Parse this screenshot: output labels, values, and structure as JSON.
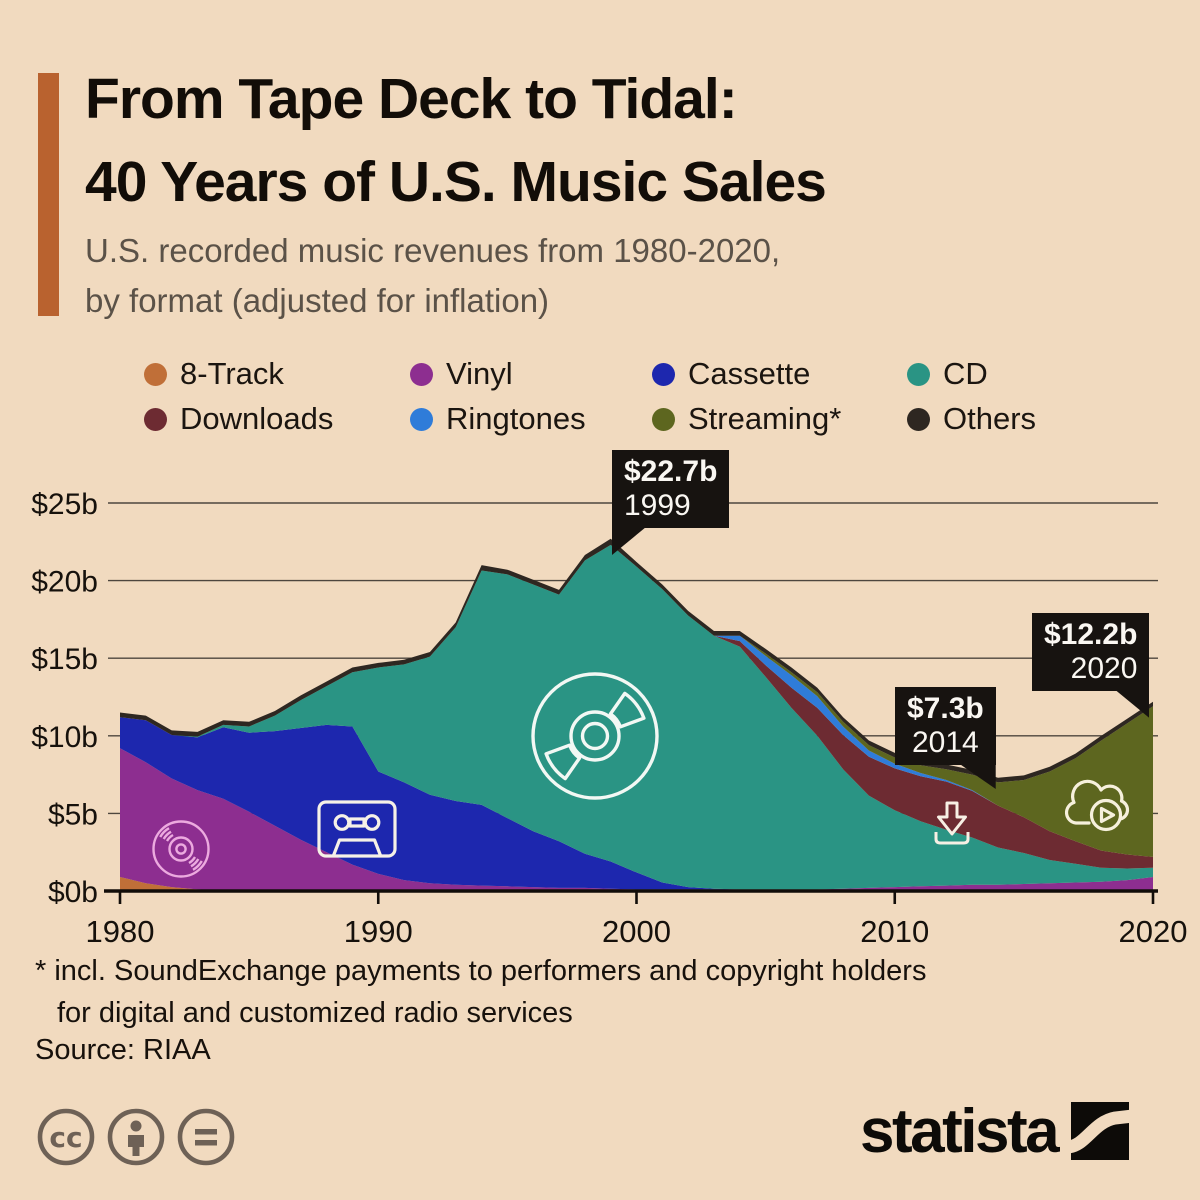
{
  "page": {
    "background": "#F1DABF"
  },
  "header": {
    "accent_color": "#B9622F",
    "title_line1": "From Tape Deck to Tidal:",
    "title_line2": "40 Years of U.S. Music Sales",
    "subtitle_line1": "U.S. recorded music revenues from 1980-2020,",
    "subtitle_line2": "by format (adjusted for inflation)"
  },
  "legend": {
    "items": [
      {
        "label": "8-Track",
        "color": "#C06F38"
      },
      {
        "label": "Vinyl",
        "color": "#8D2E90"
      },
      {
        "label": "Cassette",
        "color": "#1D27AE"
      },
      {
        "label": "CD",
        "color": "#2A9484"
      },
      {
        "label": "Downloads",
        "color": "#6D2B32"
      },
      {
        "label": "Ringtones",
        "color": "#2F7CD9"
      },
      {
        "label": "Streaming*",
        "color": "#5D661F"
      },
      {
        "label": "Others",
        "color": "#2E2721"
      }
    ]
  },
  "chart_data": {
    "type": "area",
    "stacked": true,
    "title": "U.S. recorded music revenues by format, adjusted for inflation, $ billions",
    "x": [
      1980,
      1981,
      1982,
      1983,
      1984,
      1985,
      1986,
      1987,
      1988,
      1989,
      1990,
      1991,
      1992,
      1993,
      1994,
      1995,
      1996,
      1997,
      1998,
      1999,
      2000,
      2001,
      2002,
      2003,
      2004,
      2005,
      2006,
      2007,
      2008,
      2009,
      2010,
      2011,
      2012,
      2013,
      2014,
      2015,
      2016,
      2017,
      2018,
      2019,
      2020
    ],
    "x_tick_labels": [
      "1980",
      "1990",
      "2000",
      "2010",
      "2020"
    ],
    "y_ticks": [
      {
        "label": "$0b",
        "value": 0
      },
      {
        "label": "$5b",
        "value": 5
      },
      {
        "label": "$10b",
        "value": 10
      },
      {
        "label": "$15b",
        "value": 15
      },
      {
        "label": "$20b",
        "value": 20
      },
      {
        "label": "$25b",
        "value": 25
      }
    ],
    "ylim": [
      0,
      25
    ],
    "grid": true,
    "legend_position": "top",
    "series": [
      {
        "name": "8-Track",
        "color": "#C06F38",
        "values": [
          0.9,
          0.5,
          0.25,
          0.1,
          0.05,
          0,
          0,
          0,
          0,
          0,
          0,
          0,
          0,
          0,
          0,
          0,
          0,
          0,
          0,
          0,
          0,
          0,
          0,
          0,
          0,
          0,
          0,
          0,
          0,
          0,
          0,
          0,
          0,
          0,
          0,
          0,
          0,
          0,
          0,
          0,
          0
        ]
      },
      {
        "name": "Vinyl",
        "color": "#8D2E90",
        "values": [
          8.3,
          7.8,
          7.0,
          6.4,
          5.9,
          5.1,
          4.2,
          3.3,
          2.5,
          1.7,
          1.1,
          0.7,
          0.5,
          0.4,
          0.35,
          0.3,
          0.25,
          0.2,
          0.2,
          0.15,
          0.1,
          0.1,
          0.1,
          0.1,
          0.1,
          0.1,
          0.1,
          0.1,
          0.15,
          0.2,
          0.25,
          0.3,
          0.35,
          0.4,
          0.4,
          0.45,
          0.5,
          0.55,
          0.6,
          0.7,
          0.9
        ]
      },
      {
        "name": "Cassette",
        "color": "#1D27AE",
        "values": [
          2.0,
          2.7,
          2.8,
          3.4,
          4.6,
          5.1,
          6.1,
          7.2,
          8.2,
          8.9,
          6.6,
          6.3,
          5.7,
          5.4,
          5.2,
          4.4,
          3.6,
          3.0,
          2.2,
          1.75,
          1.1,
          0.45,
          0.15,
          0.05,
          0,
          0,
          0,
          0,
          0,
          0,
          0,
          0,
          0,
          0,
          0,
          0,
          0,
          0,
          0,
          0,
          0
        ]
      },
      {
        "name": "CD",
        "color": "#2A9484",
        "values": [
          0,
          0,
          0,
          0.05,
          0.15,
          0.4,
          1.0,
          1.8,
          2.5,
          3.5,
          6.7,
          7.6,
          8.9,
          11.2,
          15.1,
          15.7,
          15.9,
          15.9,
          18.9,
          20.4,
          19.7,
          18.9,
          17.5,
          16.3,
          15.65,
          13.7,
          11.7,
          9.9,
          7.7,
          5.95,
          4.95,
          4.2,
          3.6,
          3.05,
          2.4,
          2.0,
          1.5,
          1.2,
          0.9,
          0.75,
          0.6
        ]
      },
      {
        "name": "Downloads",
        "color": "#6D2B32",
        "values": [
          0,
          0,
          0,
          0,
          0,
          0,
          0,
          0,
          0,
          0,
          0,
          0,
          0,
          0,
          0,
          0,
          0,
          0,
          0,
          0,
          0,
          0,
          0,
          0,
          0.35,
          0.75,
          1.3,
          1.8,
          2.2,
          2.5,
          2.7,
          2.9,
          3.1,
          3.0,
          2.7,
          2.3,
          1.85,
          1.45,
          1.1,
          0.9,
          0.7
        ]
      },
      {
        "name": "Ringtones",
        "color": "#2F7CD9",
        "values": [
          0,
          0,
          0,
          0,
          0,
          0,
          0,
          0,
          0,
          0,
          0,
          0,
          0,
          0,
          0,
          0,
          0,
          0,
          0,
          0,
          0,
          0,
          0,
          0,
          0.35,
          0.6,
          0.8,
          0.75,
          0.55,
          0.4,
          0.3,
          0.2,
          0.1,
          0.05,
          0,
          0,
          0,
          0,
          0,
          0,
          0
        ]
      },
      {
        "name": "Streaming*",
        "color": "#5D661F",
        "values": [
          0,
          0,
          0,
          0,
          0,
          0,
          0,
          0,
          0,
          0,
          0,
          0,
          0,
          0,
          0,
          0,
          0,
          0,
          0,
          0,
          0,
          0,
          0,
          0,
          0,
          0.15,
          0.2,
          0.25,
          0.3,
          0.35,
          0.4,
          0.5,
          0.7,
          1.0,
          1.5,
          2.4,
          3.85,
          5.35,
          7.1,
          8.45,
          9.7
        ]
      },
      {
        "name": "Others",
        "color": "#2E2721",
        "values": [
          0.3,
          0.3,
          0.3,
          0.3,
          0.3,
          0.3,
          0.3,
          0.3,
          0.3,
          0.3,
          0.3,
          0.3,
          0.3,
          0.3,
          0.35,
          0.3,
          0.3,
          0.3,
          0.35,
          0.4,
          0.3,
          0.3,
          0.3,
          0.3,
          0.3,
          0.3,
          0.3,
          0.3,
          0.3,
          0.3,
          0.3,
          0.3,
          0.3,
          0.3,
          0.3,
          0.3,
          0.3,
          0.3,
          0.3,
          0.3,
          0.3
        ]
      }
    ],
    "annotations": [
      {
        "value": "$22.7b",
        "year": "1999"
      },
      {
        "value": "$7.3b",
        "year": "2014"
      },
      {
        "value": "$12.2b",
        "year": "2020"
      }
    ],
    "icon_names": [
      "vinyl-record-icon",
      "cassette-tape-icon",
      "compact-disc-icon",
      "download-icon",
      "streaming-cloud-icon"
    ]
  },
  "footnote": {
    "line1": "* incl. SoundExchange payments to performers and copyright holders",
    "line2": "for digital and customized radio services",
    "source": "Source: RIAA"
  },
  "footer": {
    "brand": "statista",
    "license_icons": [
      "creative-commons",
      "attribution",
      "no-derivatives"
    ]
  }
}
